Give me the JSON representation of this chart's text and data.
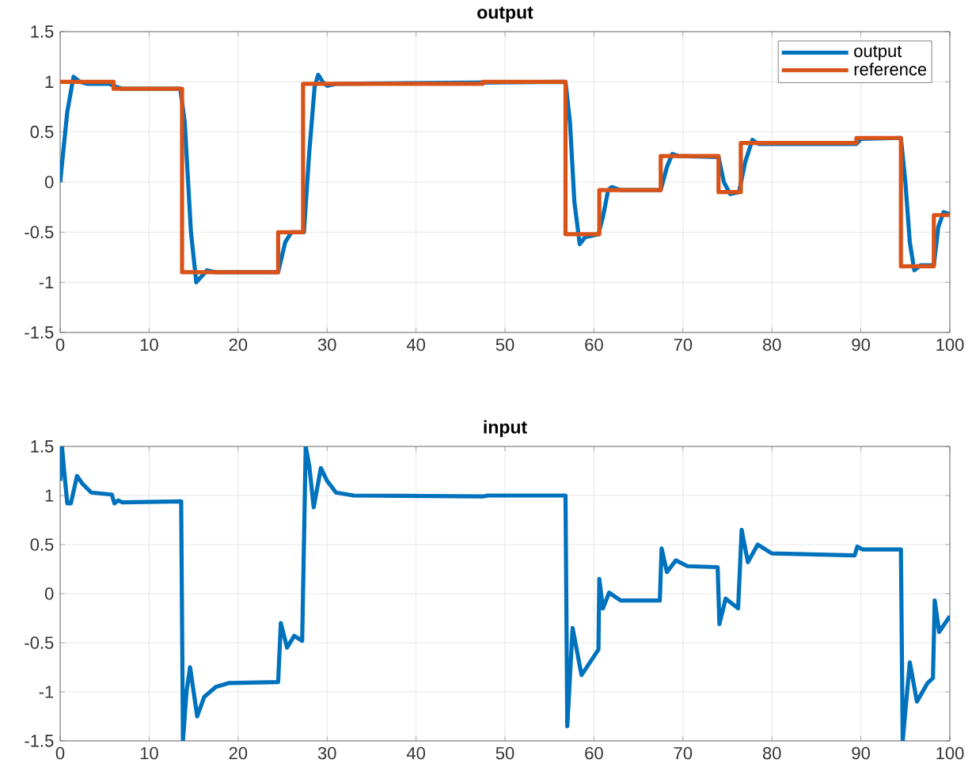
{
  "chart_data": [
    {
      "type": "line",
      "title": "output",
      "xlim": [
        0,
        100
      ],
      "ylim": [
        -1.5,
        1.5
      ],
      "xticks": [
        0,
        10,
        20,
        30,
        40,
        50,
        60,
        70,
        80,
        90,
        100
      ],
      "yticks": [
        -1.5,
        -1,
        -0.5,
        0,
        0.5,
        1,
        1.5
      ],
      "grid": true,
      "legend": "top right",
      "series": [
        {
          "name": "output",
          "color": "#0072bd",
          "x": [
            0,
            0.8,
            1.5,
            2.2,
            3,
            5.5,
            6.3,
            7,
            13.5,
            14,
            14.7,
            15.3,
            15.8,
            16.5,
            17.5,
            24.5,
            25.3,
            26,
            27.4,
            28,
            28.6,
            29,
            29.5,
            30,
            31,
            56.8,
            57.3,
            57.8,
            58.4,
            59,
            60.5,
            61,
            61.6,
            62,
            63,
            67.5,
            68.2,
            68.8,
            69.5,
            74,
            74.6,
            75.3,
            76.3,
            77,
            77.8,
            78.5,
            89.5,
            90,
            94.5,
            95,
            95.5,
            96,
            96.7,
            98.2,
            98.7,
            99.3,
            100
          ],
          "values": [
            0,
            0.7,
            1.05,
            1,
            0.98,
            0.98,
            0.95,
            0.93,
            0.93,
            0.6,
            -0.5,
            -1,
            -0.95,
            -0.88,
            -0.9,
            -0.9,
            -0.6,
            -0.5,
            -0.5,
            0.3,
            0.95,
            1.07,
            1,
            0.96,
            0.98,
            1,
            0.6,
            -0.2,
            -0.62,
            -0.55,
            -0.52,
            -0.35,
            -0.08,
            -0.05,
            -0.08,
            -0.08,
            0.15,
            0.28,
            0.26,
            0.25,
            0,
            -0.12,
            -0.1,
            0.2,
            0.42,
            0.38,
            0.38,
            0.43,
            0.44,
            0,
            -0.6,
            -0.88,
            -0.83,
            -0.83,
            -0.45,
            -0.3,
            -0.32
          ]
        },
        {
          "name": "reference",
          "type": "step",
          "color": "#d95319",
          "x": [
            0,
            6,
            13.7,
            24.5,
            27.3,
            47.5,
            56.8,
            60.6,
            67.5,
            74,
            76.5,
            89.5,
            94.5,
            98.2,
            100
          ],
          "values": [
            1,
            0.93,
            -0.9,
            -0.5,
            0.98,
            1,
            -0.52,
            -0.08,
            0.26,
            -0.1,
            0.39,
            0.44,
            -0.84,
            -0.33,
            -0.33
          ]
        }
      ]
    },
    {
      "type": "line",
      "title": "input",
      "xlim": [
        0,
        100
      ],
      "ylim": [
        -1.5,
        1.5
      ],
      "xticks": [
        0,
        10,
        20,
        30,
        40,
        50,
        60,
        70,
        80,
        90,
        100
      ],
      "yticks": [
        -1.5,
        -1,
        -0.5,
        0,
        0.5,
        1,
        1.5
      ],
      "grid": true,
      "series": [
        {
          "color": "#0072bd",
          "x": [
            0,
            0.2,
            0.5,
            0.8,
            1.2,
            1.9,
            2.5,
            3.5,
            5.8,
            6.1,
            6.5,
            7,
            13.6,
            13.8,
            14.2,
            14.6,
            15.4,
            16.2,
            17.5,
            19,
            24.5,
            24.8,
            25.5,
            26.3,
            27.2,
            27.6,
            28,
            28.5,
            29.3,
            30,
            31,
            33,
            47.5,
            48,
            56.8,
            57,
            57.6,
            58.6,
            60.5,
            60.6,
            61,
            61.7,
            63,
            67.4,
            67.6,
            68.2,
            69.2,
            70.5,
            73.9,
            74.1,
            74.8,
            76.2,
            76.6,
            77.3,
            78.4,
            80,
            89.3,
            89.6,
            90.2,
            94.5,
            94.7,
            95.5,
            96.3,
            97.5,
            98.1,
            98.3,
            98.8,
            100
          ],
          "values": [
            1.15,
            1.5,
            1.2,
            0.92,
            0.92,
            1.2,
            1.12,
            1.03,
            1.01,
            0.92,
            0.95,
            0.93,
            0.94,
            -1.5,
            -1,
            -0.75,
            -1.25,
            -1.05,
            -0.95,
            -0.91,
            -0.9,
            -0.3,
            -0.55,
            -0.43,
            -0.48,
            1.5,
            1.3,
            0.88,
            1.28,
            1.15,
            1.03,
            1,
            0.99,
            1,
            1,
            -1.35,
            -0.35,
            -0.83,
            -0.57,
            0.15,
            -0.15,
            0.01,
            -0.07,
            -0.07,
            0.46,
            0.22,
            0.34,
            0.28,
            0.27,
            -0.31,
            -0.05,
            -0.15,
            0.65,
            0.32,
            0.5,
            0.41,
            0.39,
            0.48,
            0.45,
            0.45,
            -1.5,
            -0.7,
            -1.1,
            -0.91,
            -0.86,
            -0.07,
            -0.39,
            -0.23
          ]
        }
      ]
    }
  ]
}
